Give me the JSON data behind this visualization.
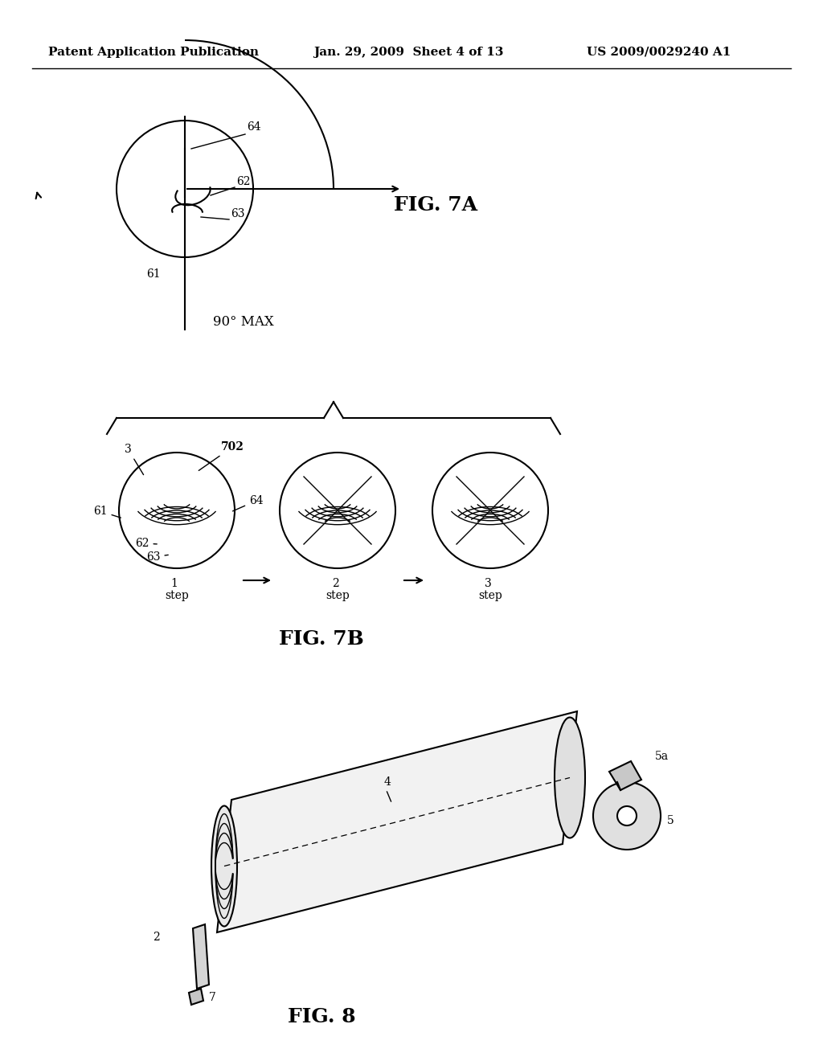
{
  "bg_color": "#ffffff",
  "header_left": "Patent Application Publication",
  "header_mid": "Jan. 29, 2009  Sheet 4 of 13",
  "header_right": "US 2009/0029240 A1",
  "fig7a_label": "FIG. 7A",
  "fig7b_label": "FIG. 7B",
  "fig8_label": "FIG. 8",
  "angle_label": "90° MAX",
  "step_labels": [
    "1",
    "2",
    "3"
  ]
}
